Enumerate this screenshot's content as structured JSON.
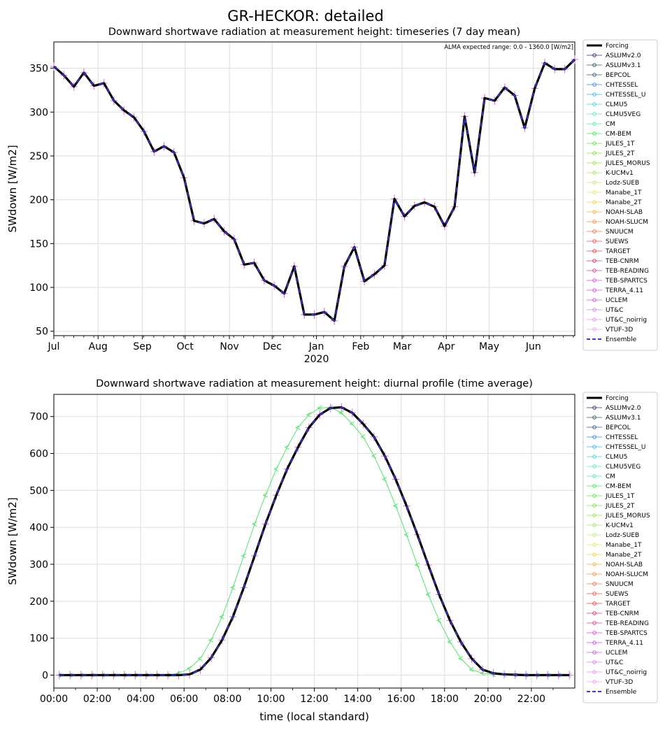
{
  "figure": {
    "suptitle": "GR-HECKOR: detailed"
  },
  "models": [
    "Forcing",
    "ASLUMv2.0",
    "ASLUMv3.1",
    "BEPCOL",
    "CHTESSEL",
    "CHTESSEL_U",
    "CLMU5",
    "CLMU5VEG",
    "CM",
    "CM-BEM",
    "JULES_1T",
    "JULES_2T",
    "JULES_MORUS",
    "K-UCMv1",
    "Lodz-SUEB",
    "Manabe_1T",
    "Manabe_2T",
    "NOAH-SLAB",
    "NOAH-SLUCM",
    "SNUUCM",
    "SUEWS",
    "TARGET",
    "TEB-CNRM",
    "TEB-READING",
    "TEB-SPARTCS",
    "TERRA_4.11",
    "UCLEM",
    "UT&C",
    "UT&C_noirrig",
    "VTUF-3D",
    "Ensemble"
  ],
  "colors": {
    "forcing": "#000000",
    "ensemble": "#3a3af0",
    "cm_bem": "#3ee65a",
    "member_marker": "#e070e0"
  },
  "chart_data": [
    {
      "type": "line",
      "title": "Downward shortwave radiation at measurement height: timeseries (7 day mean)",
      "annotation": "ALMA expected range: 0.0 - 1360.0 [W/m2]",
      "ylabel": "SWdown [W/m2]",
      "xlabel": "",
      "year_label": "2020",
      "x_tick_labels": [
        "Jul",
        "Aug",
        "Sep",
        "Oct",
        "Nov",
        "Dec",
        "Jan",
        "Feb",
        "Mar",
        "Apr",
        "May",
        "Jun"
      ],
      "y_ticks": [
        50,
        100,
        150,
        200,
        250,
        300,
        350
      ],
      "ylim": [
        45,
        380
      ],
      "grid": true,
      "legend": "outside-right",
      "series": [
        {
          "name": "Forcing",
          "values": [
            352,
            342,
            329,
            345,
            330,
            333,
            313,
            302,
            294,
            278,
            255,
            261,
            254,
            225,
            176,
            173,
            178,
            164,
            155,
            126,
            128,
            108,
            102,
            93,
            124,
            69,
            69,
            72,
            62,
            124,
            146,
            107,
            115,
            125,
            201,
            181,
            193,
            197,
            192,
            170,
            192,
            295,
            231,
            316,
            313,
            328,
            319,
            282,
            327,
            356,
            349,
            349,
            360
          ]
        },
        {
          "name": "Ensemble",
          "values": [
            352,
            342,
            329,
            345,
            330,
            333,
            313,
            302,
            294,
            278,
            255,
            261,
            254,
            225,
            176,
            173,
            178,
            164,
            155,
            126,
            128,
            108,
            102,
            93,
            124,
            69,
            69,
            72,
            62,
            124,
            146,
            107,
            115,
            125,
            201,
            181,
            193,
            197,
            192,
            170,
            192,
            295,
            231,
            316,
            313,
            328,
            319,
            282,
            327,
            356,
            349,
            349,
            360
          ]
        }
      ]
    },
    {
      "type": "line",
      "title": "Downward shortwave radiation at measurement height: diurnal profile (time average)",
      "ylabel": "SWdown [W/m2]",
      "xlabel": "time (local standard)",
      "x_tick_labels": [
        "00:00",
        "02:00",
        "04:00",
        "06:00",
        "08:00",
        "10:00",
        "12:00",
        "14:00",
        "16:00",
        "18:00",
        "20:00",
        "22:00"
      ],
      "y_ticks": [
        0,
        100,
        200,
        300,
        400,
        500,
        600,
        700
      ],
      "ylim": [
        -35,
        760
      ],
      "grid": true,
      "legend": "outside-right",
      "series": [
        {
          "name": "Forcing",
          "values": [
            0,
            0,
            0,
            0,
            0,
            0,
            0,
            0,
            0,
            0,
            0,
            0,
            2,
            15,
            47,
            95,
            158,
            237,
            323,
            409,
            487,
            558,
            617,
            670,
            705,
            723,
            725,
            710,
            680,
            645,
            593,
            530,
            458,
            380,
            298,
            218,
            148,
            90,
            45,
            15,
            5,
            2,
            1,
            0,
            0,
            0,
            0,
            0
          ]
        },
        {
          "name": "CM-BEM",
          "values": [
            0,
            0,
            0,
            0,
            0,
            0,
            0,
            0,
            0,
            0,
            0,
            5,
            18,
            45,
            95,
            158,
            237,
            323,
            409,
            487,
            558,
            617,
            670,
            705,
            723,
            725,
            710,
            680,
            645,
            593,
            530,
            458,
            380,
            298,
            218,
            148,
            90,
            45,
            15,
            5,
            2,
            1,
            0,
            0,
            0,
            0,
            0,
            0
          ]
        },
        {
          "name": "Ensemble",
          "values": [
            0,
            0,
            0,
            0,
            0,
            0,
            0,
            0,
            0,
            0,
            0,
            0,
            2,
            15,
            47,
            95,
            158,
            237,
            323,
            409,
            487,
            558,
            617,
            670,
            705,
            723,
            725,
            710,
            680,
            645,
            593,
            530,
            458,
            380,
            298,
            218,
            148,
            90,
            45,
            15,
            5,
            2,
            1,
            0,
            0,
            0,
            0,
            0
          ]
        }
      ]
    }
  ]
}
